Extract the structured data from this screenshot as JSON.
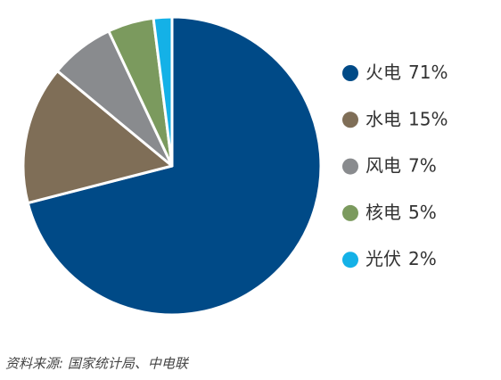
{
  "chart_data": {
    "type": "pie",
    "categories": [
      "火电",
      "水电",
      "风电",
      "核电",
      "光伏"
    ],
    "values": [
      71,
      15,
      7,
      5,
      2
    ],
    "value_labels": [
      "71%",
      "15%",
      "7%",
      "5%",
      "2%"
    ],
    "colors": [
      "#004a87",
      "#7f6e57",
      "#898b8e",
      "#7b9a5e",
      "#14b1e7"
    ],
    "note": "资料来源: 国家统计局、中电联"
  }
}
